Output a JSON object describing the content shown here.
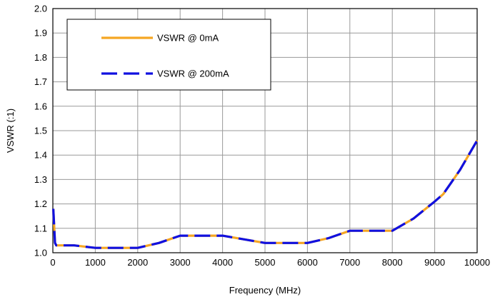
{
  "chart_data": {
    "type": "line",
    "title": "",
    "xlabel": "Frequency (MHz)",
    "ylabel": "VSWR (:1)",
    "xlim": [
      0,
      10000
    ],
    "ylim": [
      1.0,
      2.0
    ],
    "x_ticks": [
      0,
      1000,
      2000,
      3000,
      4000,
      5000,
      6000,
      7000,
      8000,
      9000,
      10000
    ],
    "y_ticks": [
      1.0,
      1.1,
      1.2,
      1.3,
      1.4,
      1.5,
      1.6,
      1.7,
      1.8,
      1.9,
      2.0
    ],
    "x_tick_labels": [
      "0",
      "1000",
      "2000",
      "3000",
      "4000",
      "5000",
      "6000",
      "7000",
      "8000",
      "9000",
      "10000"
    ],
    "y_tick_labels": [
      "1.0",
      "1.1",
      "1.2",
      "1.3",
      "1.4",
      "1.5",
      "1.6",
      "1.7",
      "1.8",
      "1.9",
      "2.0"
    ],
    "grid": true,
    "legend_position": "top-left",
    "series": [
      {
        "name": "VSWR @ 0mA",
        "color": "#F5A623",
        "style": "solid",
        "points": [
          [
            10,
            1.18
          ],
          [
            50,
            1.04
          ],
          [
            80,
            1.03
          ],
          [
            500,
            1.03
          ],
          [
            1000,
            1.02
          ],
          [
            2000,
            1.02
          ],
          [
            2500,
            1.04
          ],
          [
            3000,
            1.07
          ],
          [
            3500,
            1.07
          ],
          [
            4000,
            1.07
          ],
          [
            4500,
            1.055
          ],
          [
            5000,
            1.04
          ],
          [
            5500,
            1.04
          ],
          [
            6000,
            1.04
          ],
          [
            6500,
            1.06
          ],
          [
            7000,
            1.09
          ],
          [
            8000,
            1.09
          ],
          [
            8500,
            1.14
          ],
          [
            9000,
            1.21
          ],
          [
            9200,
            1.24
          ],
          [
            9400,
            1.29
          ],
          [
            9600,
            1.34
          ],
          [
            9800,
            1.4
          ],
          [
            10000,
            1.46
          ]
        ]
      },
      {
        "name": "VSWR @ 200mA",
        "color": "#1010E0",
        "style": "dashed",
        "points": [
          [
            10,
            1.18
          ],
          [
            50,
            1.04
          ],
          [
            80,
            1.03
          ],
          [
            500,
            1.03
          ],
          [
            1000,
            1.02
          ],
          [
            2000,
            1.02
          ],
          [
            2500,
            1.04
          ],
          [
            3000,
            1.07
          ],
          [
            3500,
            1.07
          ],
          [
            4000,
            1.07
          ],
          [
            4500,
            1.055
          ],
          [
            5000,
            1.04
          ],
          [
            5500,
            1.04
          ],
          [
            6000,
            1.04
          ],
          [
            6500,
            1.06
          ],
          [
            7000,
            1.09
          ],
          [
            8000,
            1.09
          ],
          [
            8500,
            1.14
          ],
          [
            9000,
            1.21
          ],
          [
            9200,
            1.24
          ],
          [
            9400,
            1.29
          ],
          [
            9600,
            1.34
          ],
          [
            9800,
            1.4
          ],
          [
            10000,
            1.46
          ]
        ]
      }
    ]
  }
}
